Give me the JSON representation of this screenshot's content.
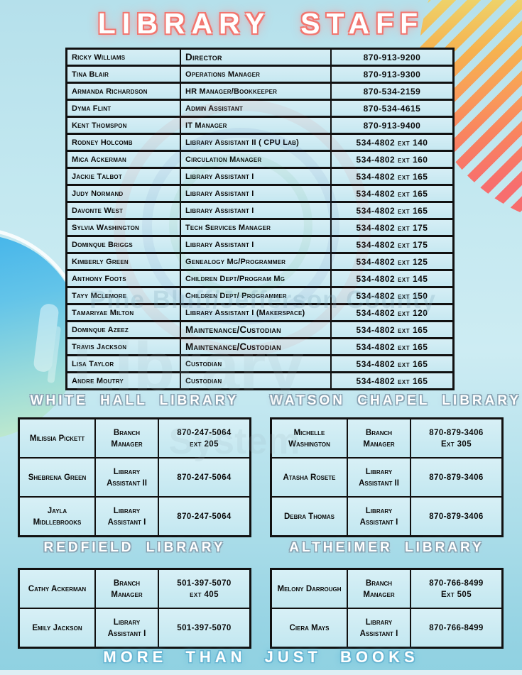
{
  "title": "LIBRARY STAFF",
  "footer": "MORE THAN JUST BOOKS",
  "watermark": {
    "line1": "Pine Bluff/Jefferson County",
    "line2": "Library",
    "line3": "System"
  },
  "palette": {
    "background_blue": "#bfe4ee",
    "cell_fill": "#cdebf3",
    "table_border": "#111111",
    "title_glow_pink": "#f2766f",
    "heading_outline": "#87a2b2",
    "footer_glow": "#5fb9d8",
    "stripe_yellow": "#ecd96f",
    "stripe_orange": "#f9a455",
    "stripe_red": "#f76e6e",
    "blob_blue": "#41b3ea"
  },
  "main_table": {
    "rows": [
      {
        "name": "Ricky Williams",
        "title": "Director",
        "phone": "870-913-9200",
        "title_size": "lg"
      },
      {
        "name": "Tina Blair",
        "title": "Operations  Manager",
        "phone": "870-913-9300"
      },
      {
        "name": "Armanda Richardson",
        "title": "HR Manager/Bookkeeper",
        "phone": "870-534-2159"
      },
      {
        "name": "Dyma Flint",
        "title": "Admin Assistant",
        "phone": "870-534-4615"
      },
      {
        "name": "Kent Thomspon",
        "title": "IT Manager",
        "phone": "870-913-9400"
      },
      {
        "name": "Rodney Holcomb",
        "title": "Library Assistant II ( CPU Lab)",
        "phone": "534-4802 ext 140"
      },
      {
        "name": "Mica Ackerman",
        "title": "Circulation Manager",
        "phone": "534-4802 ext 160"
      },
      {
        "name": "Jackie Talbot",
        "title": "Library Assistant I",
        "phone": "534-4802 ext 165"
      },
      {
        "name": "Judy Normand",
        "title": "Library Assistant I",
        "phone": "534-4802 ext 165"
      },
      {
        "name": "Davonte West",
        "title": "Library Assistant I",
        "phone": "534-4802 ext 165"
      },
      {
        "name": "Sylvia Washington",
        "title": "Tech Services Manager",
        "phone": "534-4802 ext 175"
      },
      {
        "name": "Dominque Briggs",
        "title": "Library Assistant I",
        "phone": "534-4802 ext 175"
      },
      {
        "name": "Kimberly Green",
        "title": "Genealogy Mg/Programmer",
        "phone": "534-4802 ext 125"
      },
      {
        "name": "Anthony Foots",
        "title": "Children Dept/Program Mg",
        "phone": "534-4802 ext 145"
      },
      {
        "name": "Tayy Mclemore",
        "title": "Children Dept/ Programmer",
        "phone": "534-4802 ext 150"
      },
      {
        "name": "Tamariyae Milton",
        "title": "Library Assistant I (Makerspace)",
        "phone": "534-4802 ext 120"
      },
      {
        "name": "Dominque Azeez",
        "title": "Maintenance/Custodian",
        "phone": "534-4802 ext 165",
        "title_size": "lg"
      },
      {
        "name": "Travis Jackson",
        "title": "Maintenance/Custodian",
        "phone": "534-4802 ext 165",
        "title_size": "lg"
      },
      {
        "name": "Lisa Taylor",
        "title": "Custodian",
        "phone": "534-4802 ext 165"
      },
      {
        "name": "Andre Moutry",
        "title": "Custodian",
        "phone": "534-4802 ext 165"
      }
    ]
  },
  "branches": [
    {
      "name": "WHITE HALL LIBRARY",
      "rows": [
        {
          "name": "Milissia Pickett",
          "title": "Branch Manager",
          "phone": "870-247-5064",
          "ext": "ext 205"
        },
        {
          "name": "Shebrena Green",
          "title": "Library Assistant II",
          "phone": "870-247-5064",
          "ext": ""
        },
        {
          "name": "Jayla Midllebrooks",
          "title": "Library Assistant I",
          "phone": "870-247-5064",
          "ext": ""
        }
      ]
    },
    {
      "name": "WATSON CHAPEL LIBRARY",
      "rows": [
        {
          "name": "Michelle Washington",
          "title": "Branch Manager",
          "phone": "870-879-3406",
          "ext": "Ext 305"
        },
        {
          "name": "Atasha Rosete",
          "title": "Library Assistant II",
          "phone": "870-879-3406",
          "ext": ""
        },
        {
          "name": "Debra Thomas",
          "title": "Library Assistant I",
          "phone": "870-879-3406",
          "ext": ""
        }
      ]
    },
    {
      "name": "REDFIELD LIBRARY",
      "rows": [
        {
          "name": "Cathy Ackerman",
          "title": "Branch Manager",
          "phone": "501-397-5070",
          "ext": "ext 405"
        },
        {
          "name": "Emily Jackson",
          "title": "Library Assistant I",
          "phone": "501-397-5070",
          "ext": ""
        }
      ]
    },
    {
      "name": "ALTHEIMER LIBRARY",
      "rows": [
        {
          "name": "Melony Darrough",
          "title": "Branch Manager",
          "phone": "870-766-8499",
          "ext": "Ext 505"
        },
        {
          "name": "Ciera Mays",
          "title": "Library Assistant I",
          "phone": "870-766-8499",
          "ext": ""
        }
      ]
    }
  ]
}
